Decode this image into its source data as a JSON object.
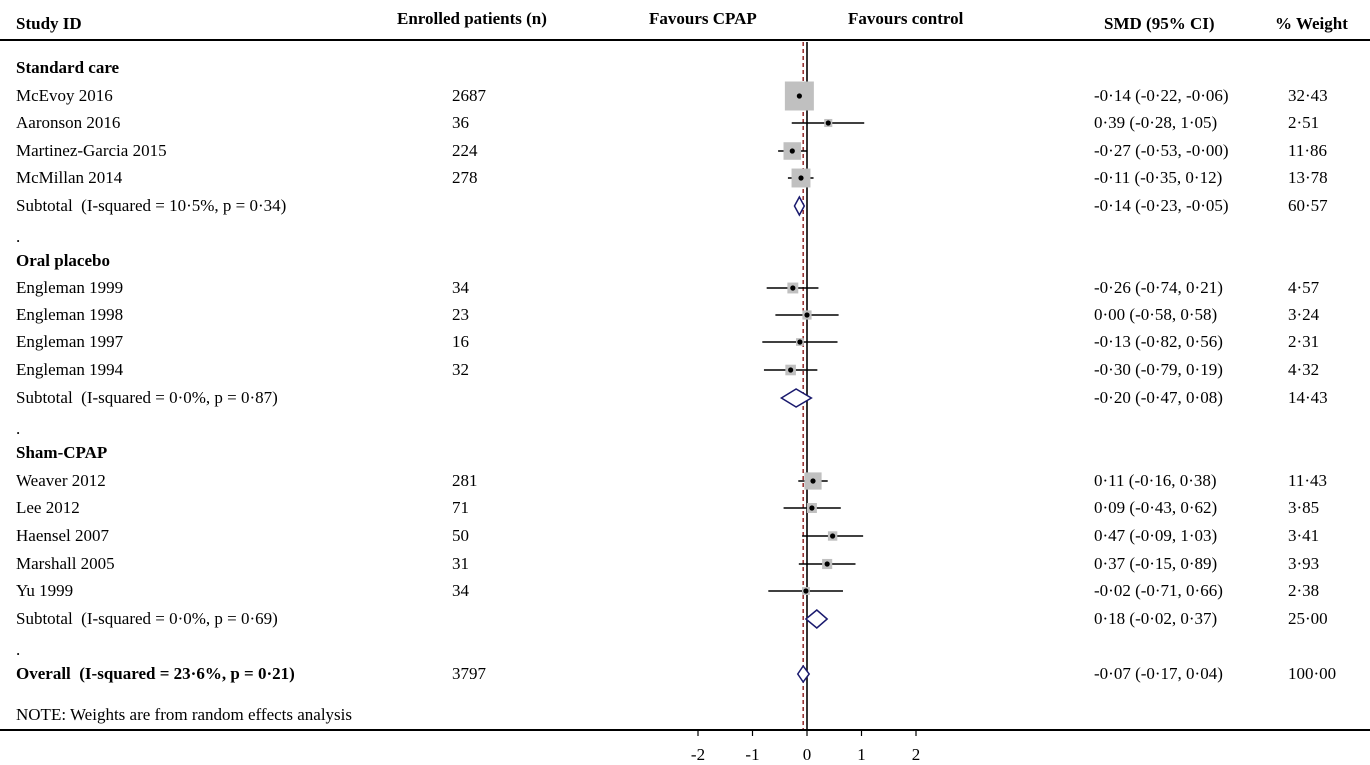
{
  "headers": {
    "study_id": "Study ID",
    "enrolled": "Enrolled patients (n)",
    "favours_left": "Favours CPAP",
    "favours_right": "Favours control",
    "smd": "SMD (95% CI)",
    "weight": "% Weight"
  },
  "note": "NOTE: Weights are from random effects analysis",
  "chart_data": {
    "type": "forest",
    "x_ticks": [
      "-2",
      "-1",
      "0",
      "1",
      "2"
    ],
    "xlim": [
      -2,
      2
    ],
    "overall_line": -0.07,
    "rows": [
      {
        "kind": "group",
        "label": "Standard care"
      },
      {
        "kind": "study",
        "label": "McEvoy 2016",
        "n": "2687",
        "smd": -0.14,
        "lo": -0.22,
        "hi": -0.06,
        "ci_text": "-0·14 (-0·22, -0·06)",
        "weight": "32·43",
        "w": 32.43
      },
      {
        "kind": "study",
        "label": "Aaronson 2016",
        "n": "36",
        "smd": 0.39,
        "lo": -0.28,
        "hi": 1.05,
        "ci_text": "0·39 (-0·28, 1·05)",
        "weight": "2·51",
        "w": 2.51
      },
      {
        "kind": "study",
        "label": "Martinez-Garcia 2015",
        "n": "224",
        "smd": -0.27,
        "lo": -0.53,
        "hi": -0.0,
        "ci_text": "-0·27 (-0·53, -0·00)",
        "weight": "11·86",
        "w": 11.86
      },
      {
        "kind": "study",
        "label": "McMillan 2014",
        "n": "278",
        "smd": -0.11,
        "lo": -0.35,
        "hi": 0.12,
        "ci_text": "-0·11 (-0·35, 0·12)",
        "weight": "13·78",
        "w": 13.78
      },
      {
        "kind": "subtotal",
        "label": "Subtotal  (I-squared = 10·5%, p = 0·34)",
        "smd": -0.14,
        "lo": -0.23,
        "hi": -0.05,
        "ci_text": "-0·14 (-0·23, -0·05)",
        "weight": "60·57"
      },
      {
        "kind": "dot",
        "label": "."
      },
      {
        "kind": "group",
        "label": "Oral placebo"
      },
      {
        "kind": "study",
        "label": "Engleman 1999",
        "n": "34",
        "smd": -0.26,
        "lo": -0.74,
        "hi": 0.21,
        "ci_text": "-0·26 (-0·74, 0·21)",
        "weight": "4·57",
        "w": 4.57
      },
      {
        "kind": "study",
        "label": "Engleman 1998",
        "n": "23",
        "smd": 0.0,
        "lo": -0.58,
        "hi": 0.58,
        "ci_text": "0·00 (-0·58, 0·58)",
        "weight": "3·24",
        "w": 3.24
      },
      {
        "kind": "study",
        "label": "Engleman 1997",
        "n": "16",
        "smd": -0.13,
        "lo": -0.82,
        "hi": 0.56,
        "ci_text": "-0·13 (-0·82, 0·56)",
        "weight": "2·31",
        "w": 2.31
      },
      {
        "kind": "study",
        "label": "Engleman 1994",
        "n": "32",
        "smd": -0.3,
        "lo": -0.79,
        "hi": 0.19,
        "ci_text": "-0·30 (-0·79, 0·19)",
        "weight": "4·32",
        "w": 4.32
      },
      {
        "kind": "subtotal",
        "label": "Subtotal  (I-squared = 0·0%, p = 0·87)",
        "smd": -0.2,
        "lo": -0.47,
        "hi": 0.08,
        "ci_text": "-0·20 (-0·47, 0·08)",
        "weight": "14·43"
      },
      {
        "kind": "dot",
        "label": "."
      },
      {
        "kind": "group",
        "label": "Sham-CPAP"
      },
      {
        "kind": "study",
        "label": "Weaver 2012",
        "n": "281",
        "smd": 0.11,
        "lo": -0.16,
        "hi": 0.38,
        "ci_text": "0·11 (-0·16, 0·38)",
        "weight": "11·43",
        "w": 11.43
      },
      {
        "kind": "study",
        "label": "Lee 2012",
        "n": "71",
        "smd": 0.09,
        "lo": -0.43,
        "hi": 0.62,
        "ci_text": "0·09 (-0·43, 0·62)",
        "weight": "3·85",
        "w": 3.85
      },
      {
        "kind": "study",
        "label": "Haensel 2007",
        "n": "50",
        "smd": 0.47,
        "lo": -0.09,
        "hi": 1.03,
        "ci_text": "0·47 (-0·09, 1·03)",
        "weight": "3·41",
        "w": 3.41
      },
      {
        "kind": "study",
        "label": "Marshall 2005",
        "n": "31",
        "smd": 0.37,
        "lo": -0.15,
        "hi": 0.89,
        "ci_text": "0·37 (-0·15, 0·89)",
        "weight": "3·93",
        "w": 3.93
      },
      {
        "kind": "study",
        "label": "Yu 1999",
        "n": "34",
        "smd": -0.02,
        "lo": -0.71,
        "hi": 0.66,
        "ci_text": "-0·02 (-0·71, 0·66)",
        "weight": "2·38",
        "w": 2.38
      },
      {
        "kind": "subtotal",
        "label": "Subtotal  (I-squared = 0·0%, p = 0·69)",
        "smd": 0.18,
        "lo": -0.02,
        "hi": 0.37,
        "ci_text": "0·18 (-0·02, 0·37)",
        "weight": "25·00"
      },
      {
        "kind": "dot",
        "label": "."
      },
      {
        "kind": "overall",
        "label": "Overall  (I-squared = 23·6%, p = 0·21)",
        "n": "3797",
        "smd": -0.07,
        "lo": -0.17,
        "hi": 0.04,
        "ci_text": "-0·07 (-0·17, 0·04)",
        "weight": "100·00"
      }
    ],
    "colors": {
      "box": "#c0c0c0",
      "diamond": "#1a1a6e",
      "overall_line": "#8b1a1a",
      "axis": "#000000"
    }
  }
}
